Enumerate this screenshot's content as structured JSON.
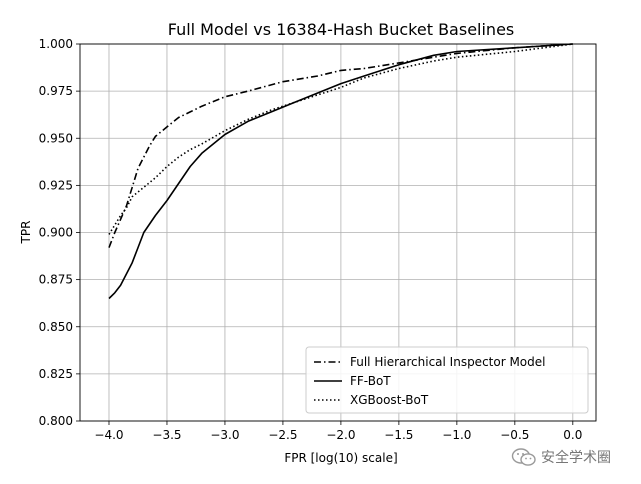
{
  "chart_data": {
    "type": "line",
    "title": "Full Model vs 16384-Hash Bucket Baselines",
    "xlabel": "FPR [log(10) scale]",
    "ylabel": "TPR",
    "xlim": [
      -4.25,
      0.2
    ],
    "ylim": [
      0.8,
      1.0
    ],
    "xticks": [
      -4.0,
      -3.5,
      -3.0,
      -2.5,
      -2.0,
      -1.5,
      -1.0,
      -0.5,
      0.0
    ],
    "xtick_labels": [
      "−4.0",
      "−3.5",
      "−3.0",
      "−2.5",
      "−2.0",
      "−1.5",
      "−1.0",
      "−0.5",
      "0.0"
    ],
    "yticks": [
      0.8,
      0.825,
      0.85,
      0.875,
      0.9,
      0.925,
      0.95,
      0.975,
      1.0
    ],
    "ytick_labels": [
      "0.800",
      "0.825",
      "0.850",
      "0.875",
      "0.900",
      "0.925",
      "0.950",
      "0.975",
      "1.000"
    ],
    "grid": true,
    "legend_position": "lower-right",
    "series": [
      {
        "name": "Full Hierarchical Inspector Model",
        "style": "dashdot",
        "color": "#000000",
        "x": [
          -4.0,
          -3.95,
          -3.9,
          -3.85,
          -3.8,
          -3.75,
          -3.7,
          -3.65,
          -3.6,
          -3.5,
          -3.4,
          -3.3,
          -3.2,
          -3.0,
          -2.8,
          -2.5,
          -2.2,
          -2.0,
          -1.8,
          -1.5,
          -1.2,
          -1.0,
          -0.5,
          0.0
        ],
        "y": [
          0.892,
          0.9,
          0.907,
          0.914,
          0.924,
          0.934,
          0.94,
          0.946,
          0.951,
          0.956,
          0.961,
          0.964,
          0.967,
          0.972,
          0.975,
          0.98,
          0.983,
          0.986,
          0.987,
          0.99,
          0.993,
          0.995,
          0.998,
          1.0
        ]
      },
      {
        "name": "FF-BoT",
        "style": "solid",
        "color": "#000000",
        "x": [
          -4.0,
          -3.95,
          -3.9,
          -3.85,
          -3.8,
          -3.75,
          -3.7,
          -3.6,
          -3.5,
          -3.4,
          -3.3,
          -3.2,
          -3.0,
          -2.8,
          -2.6,
          -2.4,
          -2.2,
          -2.0,
          -1.8,
          -1.5,
          -1.2,
          -1.0,
          -0.5,
          0.0
        ],
        "y": [
          0.865,
          0.868,
          0.872,
          0.878,
          0.884,
          0.892,
          0.9,
          0.909,
          0.917,
          0.926,
          0.935,
          0.942,
          0.952,
          0.959,
          0.964,
          0.969,
          0.974,
          0.979,
          0.983,
          0.989,
          0.994,
          0.996,
          0.998,
          1.0
        ]
      },
      {
        "name": "XGBoost-BoT",
        "style": "dotted",
        "color": "#000000",
        "x": [
          -4.0,
          -3.95,
          -3.9,
          -3.85,
          -3.8,
          -3.7,
          -3.6,
          -3.5,
          -3.4,
          -3.3,
          -3.2,
          -3.0,
          -2.8,
          -2.6,
          -2.4,
          -2.2,
          -2.0,
          -1.8,
          -1.5,
          -1.2,
          -1.0,
          -0.5,
          0.0
        ],
        "y": [
          0.899,
          0.904,
          0.909,
          0.913,
          0.919,
          0.924,
          0.929,
          0.935,
          0.94,
          0.944,
          0.947,
          0.954,
          0.96,
          0.965,
          0.969,
          0.973,
          0.977,
          0.982,
          0.987,
          0.991,
          0.993,
          0.996,
          1.0
        ]
      }
    ]
  },
  "watermark": {
    "text": "安全学术圈",
    "icon": "wechat-icon"
  }
}
